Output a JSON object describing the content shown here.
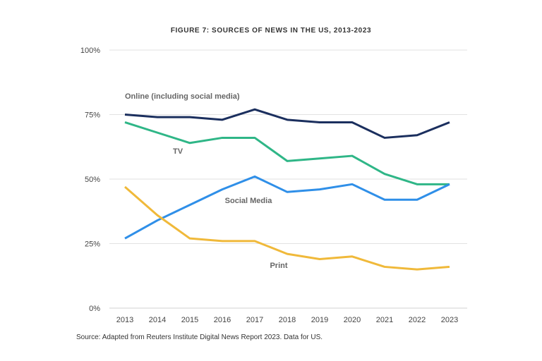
{
  "chart_data": {
    "type": "line",
    "title": "FIGURE 7: SOURCES OF NEWS IN THE US, 2013-2023",
    "xlabel": "",
    "ylabel": "",
    "x": [
      "2013",
      "2014",
      "2015",
      "2016",
      "2017",
      "2018",
      "2019",
      "2020",
      "2021",
      "2022",
      "2023"
    ],
    "ylim": [
      0,
      100
    ],
    "yticks": [
      "0%",
      "25%",
      "50%",
      "75%",
      "100%"
    ],
    "grid": true,
    "legend": "none (inline labels)",
    "series": [
      {
        "name": "Online (including social media)",
        "color": "#1b2f5e",
        "values": [
          75,
          74,
          74,
          73,
          77,
          73,
          72,
          72,
          66,
          67,
          72
        ]
      },
      {
        "name": "TV",
        "color": "#2fb687",
        "values": [
          72,
          68,
          64,
          66,
          66,
          57,
          58,
          59,
          52,
          48,
          48
        ]
      },
      {
        "name": "Social Media",
        "color": "#2f8fe8",
        "values": [
          27,
          34,
          40,
          46,
          51,
          45,
          46,
          48,
          42,
          42,
          48
        ]
      },
      {
        "name": "Print",
        "color": "#f0b93a",
        "values": [
          47,
          36,
          27,
          26,
          26,
          21,
          19,
          20,
          16,
          15,
          16
        ]
      }
    ],
    "source": "Source: Adapted from Reuters Institute Digital News Report 2023. Data for US."
  }
}
